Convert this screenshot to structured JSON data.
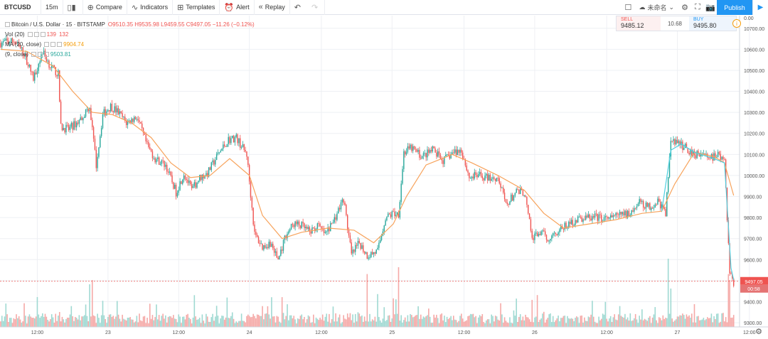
{
  "toolbar": {
    "symbol": "BTCUSD",
    "interval": "15m",
    "compare": "Compare",
    "indicators": "Indicators",
    "templates": "Templates",
    "alert": "Alert",
    "replay": "Replay",
    "cloud_label": "未命名",
    "publish": "Publish"
  },
  "legend": {
    "title": "Bitcoin / U.S. Dollar · 15 · BITSTAMP",
    "ohlc": "O9510.35 H9535.98 L9459.55 C9497.05 −11.26 (−0.12%)",
    "vol_label": "Vol (20)",
    "vol_a": "139",
    "vol_b": "132",
    "ma_label": "MA (20, close)",
    "ma_value": "9904.74",
    "ma2_label": "(9, close)",
    "ma2_value": "9503.81"
  },
  "trade": {
    "sell_label": "SELL",
    "sell_value": "9485.12",
    "spread": "10.68",
    "buy_label": "BUY",
    "buy_value": "9495.80"
  },
  "colors": {
    "up": "#26a69a",
    "down": "#ef5350",
    "ma": "#f7a35c",
    "ma2": "#4dd0e1",
    "grid": "#eef0f4"
  },
  "chart_data": {
    "type": "candlestick",
    "price_axis": [
      "10700.00",
      "10600.00",
      "10500.00",
      "10400.00",
      "10300.00",
      "10200.00",
      "10100.00",
      "10000.00",
      "9900.00",
      "9800.00",
      "9700.00",
      "9600.00",
      "9500.00",
      "9400.00",
      "9300.00"
    ],
    "price_range": [
      9280,
      10760
    ],
    "time_axis": [
      "12:00",
      "23",
      "12:00",
      "24",
      "12:00",
      "25",
      "12:00",
      "26",
      "12:00",
      "27",
      "12:00"
    ],
    "time_index": [
      28,
      82,
      136,
      190,
      245,
      299,
      354,
      408,
      463,
      517,
      572
    ],
    "last_price": "9497.05",
    "last_value": 9497.05,
    "countdown": "00:58",
    "top_label": "0.00",
    "path": [
      [
        0,
        10630
      ],
      [
        10,
        10640
      ],
      [
        18,
        10580
      ],
      [
        25,
        10460
      ],
      [
        32,
        10590
      ],
      [
        38,
        10520
      ],
      [
        44,
        10480
      ],
      [
        46,
        10230
      ],
      [
        52,
        10220
      ],
      [
        60,
        10260
      ],
      [
        68,
        10330
      ],
      [
        73,
        10050
      ],
      [
        78,
        10290
      ],
      [
        84,
        10330
      ],
      [
        90,
        10300
      ],
      [
        96,
        10250
      ],
      [
        104,
        10280
      ],
      [
        112,
        10140
      ],
      [
        118,
        10080
      ],
      [
        126,
        10050
      ],
      [
        134,
        9920
      ],
      [
        140,
        10010
      ],
      [
        146,
        9930
      ],
      [
        152,
        9990
      ],
      [
        158,
        10010
      ],
      [
        166,
        10100
      ],
      [
        174,
        10170
      ],
      [
        180,
        10180
      ],
      [
        188,
        10100
      ],
      [
        194,
        9720
      ],
      [
        200,
        9660
      ],
      [
        206,
        9680
      ],
      [
        212,
        9600
      ],
      [
        218,
        9720
      ],
      [
        224,
        9770
      ],
      [
        230,
        9760
      ],
      [
        236,
        9730
      ],
      [
        242,
        9760
      ],
      [
        248,
        9720
      ],
      [
        254,
        9780
      ],
      [
        262,
        9890
      ],
      [
        268,
        9620
      ],
      [
        274,
        9680
      ],
      [
        280,
        9620
      ],
      [
        288,
        9640
      ],
      [
        294,
        9800
      ],
      [
        300,
        9820
      ],
      [
        304,
        9820
      ],
      [
        308,
        10110
      ],
      [
        314,
        10130
      ],
      [
        322,
        10090
      ],
      [
        330,
        10120
      ],
      [
        338,
        10070
      ],
      [
        346,
        10110
      ],
      [
        352,
        10120
      ],
      [
        358,
        9990
      ],
      [
        364,
        10000
      ],
      [
        372,
        9990
      ],
      [
        380,
        9990
      ],
      [
        386,
        9860
      ],
      [
        394,
        9920
      ],
      [
        400,
        9920
      ],
      [
        406,
        9700
      ],
      [
        412,
        9730
      ],
      [
        418,
        9700
      ],
      [
        424,
        9730
      ],
      [
        432,
        9760
      ],
      [
        440,
        9790
      ],
      [
        448,
        9800
      ],
      [
        456,
        9800
      ],
      [
        464,
        9790
      ],
      [
        472,
        9810
      ],
      [
        480,
        9820
      ],
      [
        488,
        9870
      ],
      [
        496,
        9850
      ],
      [
        502,
        9880
      ],
      [
        508,
        9820
      ],
      [
        512,
        10170
      ],
      [
        518,
        10150
      ],
      [
        524,
        10130
      ],
      [
        530,
        10100
      ],
      [
        536,
        10110
      ],
      [
        542,
        10080
      ],
      [
        548,
        10100
      ],
      [
        553,
        10060
      ],
      [
        557,
        9540
      ],
      [
        560,
        9490
      ]
    ],
    "ma_path": [
      [
        0,
        10600
      ],
      [
        20,
        10590
      ],
      [
        40,
        10520
      ],
      [
        55,
        10400
      ],
      [
        70,
        10300
      ],
      [
        85,
        10290
      ],
      [
        100,
        10250
      ],
      [
        115,
        10180
      ],
      [
        130,
        10060
      ],
      [
        145,
        9990
      ],
      [
        160,
        10000
      ],
      [
        175,
        10080
      ],
      [
        190,
        10000
      ],
      [
        200,
        9810
      ],
      [
        215,
        9700
      ],
      [
        230,
        9730
      ],
      [
        250,
        9750
      ],
      [
        270,
        9740
      ],
      [
        285,
        9680
      ],
      [
        300,
        9770
      ],
      [
        310,
        9900
      ],
      [
        325,
        10050
      ],
      [
        345,
        10100
      ],
      [
        360,
        10060
      ],
      [
        380,
        10000
      ],
      [
        400,
        9930
      ],
      [
        415,
        9820
      ],
      [
        430,
        9750
      ],
      [
        450,
        9770
      ],
      [
        470,
        9790
      ],
      [
        490,
        9820
      ],
      [
        505,
        9830
      ],
      [
        515,
        9960
      ],
      [
        530,
        10110
      ],
      [
        545,
        10090
      ],
      [
        553,
        10060
      ],
      [
        560,
        9905
      ]
    ],
    "ma2_path": [
      [
        505,
        9830
      ],
      [
        512,
        10120
      ],
      [
        520,
        10150
      ],
      [
        530,
        10110
      ],
      [
        545,
        10080
      ],
      [
        553,
        10060
      ],
      [
        558,
        9560
      ],
      [
        560,
        9504
      ]
    ],
    "volume_spikes": [
      [
        70,
        0.55
      ],
      [
        68,
        0.5
      ],
      [
        280,
        0.62
      ],
      [
        304,
        0.7
      ],
      [
        510,
        0.8
      ],
      [
        512,
        0.45
      ],
      [
        556,
        0.62
      ],
      [
        557,
        0.55
      ]
    ]
  }
}
